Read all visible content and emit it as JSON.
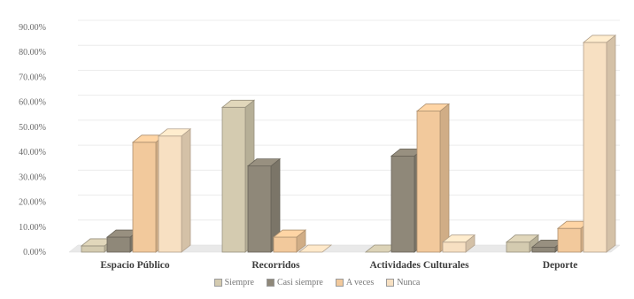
{
  "chart_data": {
    "type": "bar",
    "title": "",
    "xlabel": "",
    "ylabel": "",
    "ylim": [
      0,
      90
    ],
    "y_ticks": [
      "0.00%",
      "10.00%",
      "20.00%",
      "30.00%",
      "40.00%",
      "50.00%",
      "60.00%",
      "70.00%",
      "80.00%",
      "90.00%"
    ],
    "categories": [
      "Espacio Público",
      "Recorridos",
      "Actividades Culturales",
      "Deporte"
    ],
    "series": [
      {
        "name": "Siempre",
        "color": "#d4cbb0",
        "values": [
          2.5,
          58,
          0,
          4
        ]
      },
      {
        "name": "Casi siempre",
        "color": "#8f8879",
        "values": [
          6,
          34.5,
          38.5,
          2
        ]
      },
      {
        "name": "A veces",
        "color": "#f2c99c",
        "values": [
          44,
          6,
          56.5,
          9.5
        ]
      },
      {
        "name": "Nunca",
        "color": "#f7e0c2",
        "values": [
          46.5,
          0,
          4,
          84
        ]
      }
    ],
    "grid": true,
    "legend_position": "bottom"
  }
}
